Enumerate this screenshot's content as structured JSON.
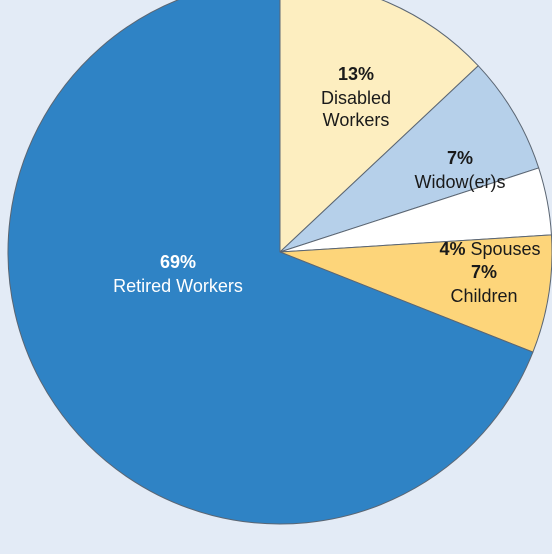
{
  "chart_data": {
    "type": "pie",
    "slices": [
      {
        "label": "Disabled Workers",
        "label_lines": [
          "Disabled",
          "Workers"
        ],
        "value": 13,
        "display": "13%",
        "color": "#fdeec0",
        "text_color": "#1a1a1a"
      },
      {
        "label": "Widow(er)s",
        "label_lines": [
          "Widow(er)s"
        ],
        "value": 7,
        "display": "7%",
        "color": "#b6d0ea",
        "text_color": "#1a1a1a"
      },
      {
        "label": "Spouses",
        "label_lines": [
          "Spouses"
        ],
        "value": 4,
        "display": "4%",
        "color": "#ffffff",
        "text_color": "#1a1a1a"
      },
      {
        "label": "Children",
        "label_lines": [
          "Children"
        ],
        "value": 7,
        "display": "7%",
        "color": "#fdd57a",
        "text_color": "#1a1a1a"
      },
      {
        "label": "Retired Workers",
        "label_lines": [
          "Retired Workers"
        ],
        "value": 69,
        "display": "69%",
        "color": "#2f83c5",
        "text_color": "#ffffff"
      }
    ],
    "start_angle_deg": 0,
    "direction": "clockwise",
    "legend": "none"
  }
}
